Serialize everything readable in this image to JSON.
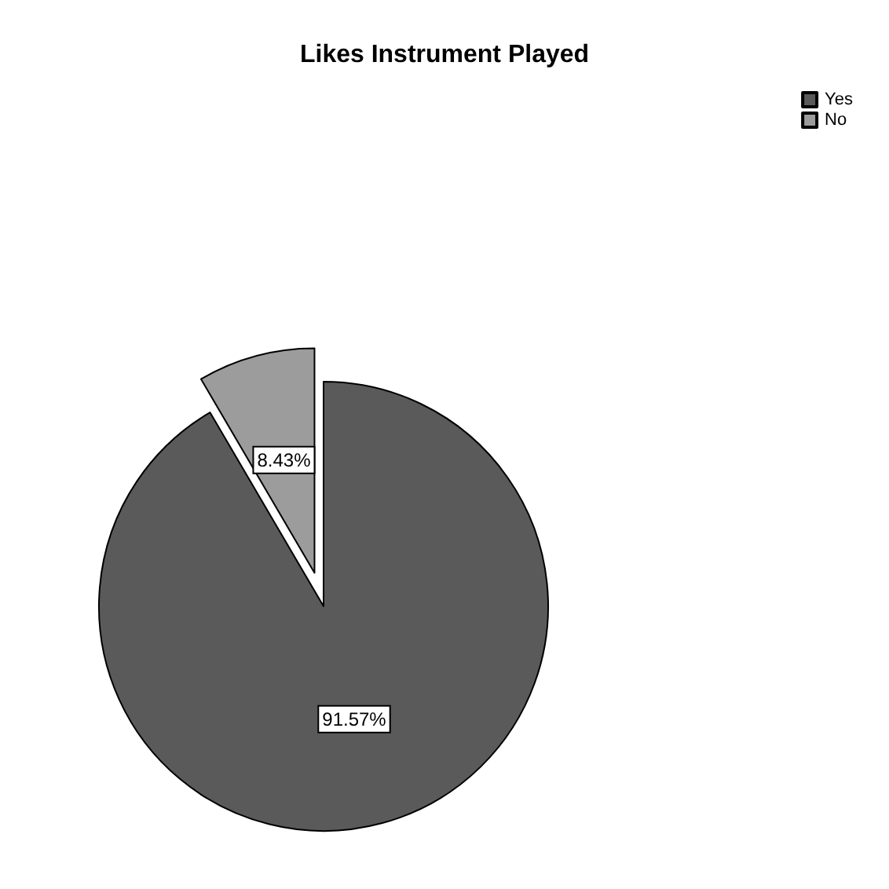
{
  "chart_data": {
    "type": "pie",
    "title": "Likes Instrument Played",
    "categories": [
      "Yes",
      "No"
    ],
    "values": [
      91.57,
      8.43
    ],
    "value_labels": [
      "91.57%",
      "8.43%"
    ],
    "colors": [
      "#5a5a5a",
      "#9c9c9c"
    ],
    "legend": "top right"
  }
}
